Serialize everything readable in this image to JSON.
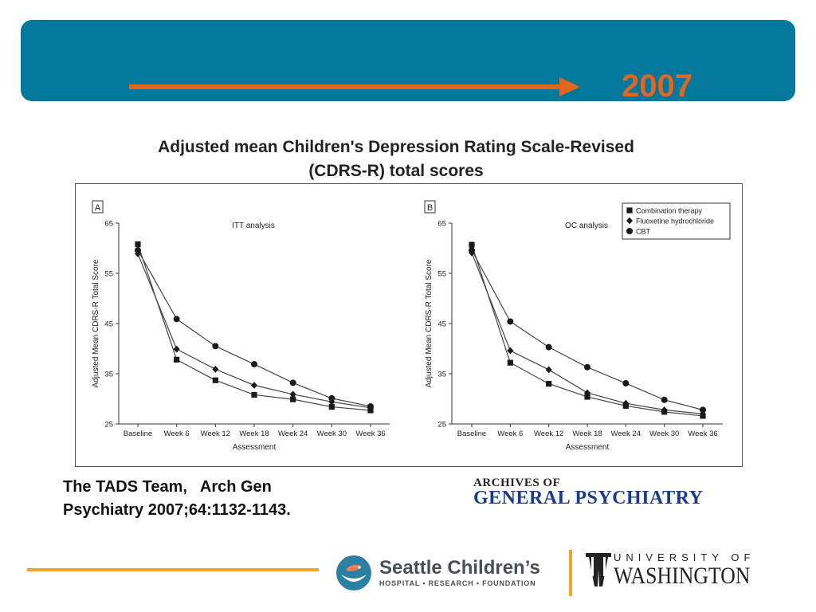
{
  "header": {
    "year": "2007",
    "banner_color": "#04789c",
    "accent_color": "#e1661f"
  },
  "chart_title": [
    "Adjusted mean Children's Depression Rating Scale-Revised",
    "(CDRS-R) total scores"
  ],
  "legend": {
    "items": [
      {
        "label": "Combination therapy",
        "marker": "square"
      },
      {
        "label": "Fluoxetine hydrochloride",
        "marker": "diamond"
      },
      {
        "label": "CBT",
        "marker": "circle"
      }
    ],
    "placement": "top-right"
  },
  "chart_data": [
    {
      "type": "line",
      "panel_label": "A",
      "title": "ITT analysis",
      "xlabel": "Assessment",
      "ylabel": "Adjusted Mean CDRS-R Total Score",
      "ylim": [
        25,
        65
      ],
      "yticks": [
        25,
        35,
        45,
        55,
        65
      ],
      "categories": [
        "Baseline",
        "Week 6",
        "Week 12",
        "Week 18",
        "Week 24",
        "Week 30",
        "Week 36"
      ],
      "grid": false,
      "series": [
        {
          "name": "Combination therapy",
          "marker": "square",
          "values": [
            60.8,
            37.8,
            33.7,
            30.8,
            29.9,
            28.4,
            27.7
          ]
        },
        {
          "name": "Fluoxetine hydrochloride",
          "marker": "diamond",
          "values": [
            58.9,
            39.9,
            35.9,
            32.7,
            30.9,
            29.4,
            28.2
          ]
        },
        {
          "name": "CBT",
          "marker": "circle",
          "values": [
            59.6,
            45.9,
            40.5,
            36.9,
            33.2,
            30.1,
            28.5
          ]
        }
      ]
    },
    {
      "type": "line",
      "panel_label": "B",
      "title": "OC analysis",
      "xlabel": "Assessment",
      "ylabel": "Adjusted Mean CDRS-R Total Score",
      "ylim": [
        25,
        65
      ],
      "yticks": [
        25,
        35,
        45,
        55,
        65
      ],
      "categories": [
        "Baseline",
        "Week 6",
        "Week 12",
        "Week 18",
        "Week 24",
        "Week 30",
        "Week 36"
      ],
      "grid": false,
      "series": [
        {
          "name": "Combination therapy",
          "marker": "square",
          "values": [
            60.7,
            37.2,
            33.0,
            30.4,
            28.6,
            27.4,
            26.6
          ]
        },
        {
          "name": "Fluoxetine hydrochloride",
          "marker": "diamond",
          "values": [
            59.1,
            39.6,
            35.8,
            31.2,
            29.1,
            27.8,
            27.0
          ]
        },
        {
          "name": "CBT",
          "marker": "circle",
          "values": [
            59.6,
            45.4,
            40.3,
            36.3,
            33.1,
            29.8,
            27.8
          ]
        }
      ]
    }
  ],
  "citation": [
    "The TADS Team,   Arch Gen",
    "Psychiatry 2007;64:1132-1143."
  ],
  "journal_logo": {
    "line1": "ARCHIVES OF",
    "line2": "GENERAL PSYCHIATRY",
    "color": "#1b3b8a"
  },
  "sch_logo": {
    "name": "Seattle Children’s",
    "subtitle": "HOSPITAL • RESEARCH • FOUNDATION"
  },
  "uw_logo": {
    "line1": "UNIVERSITY OF",
    "line2": "WASHINGTON"
  },
  "footer_rule_color": "#f5a623"
}
